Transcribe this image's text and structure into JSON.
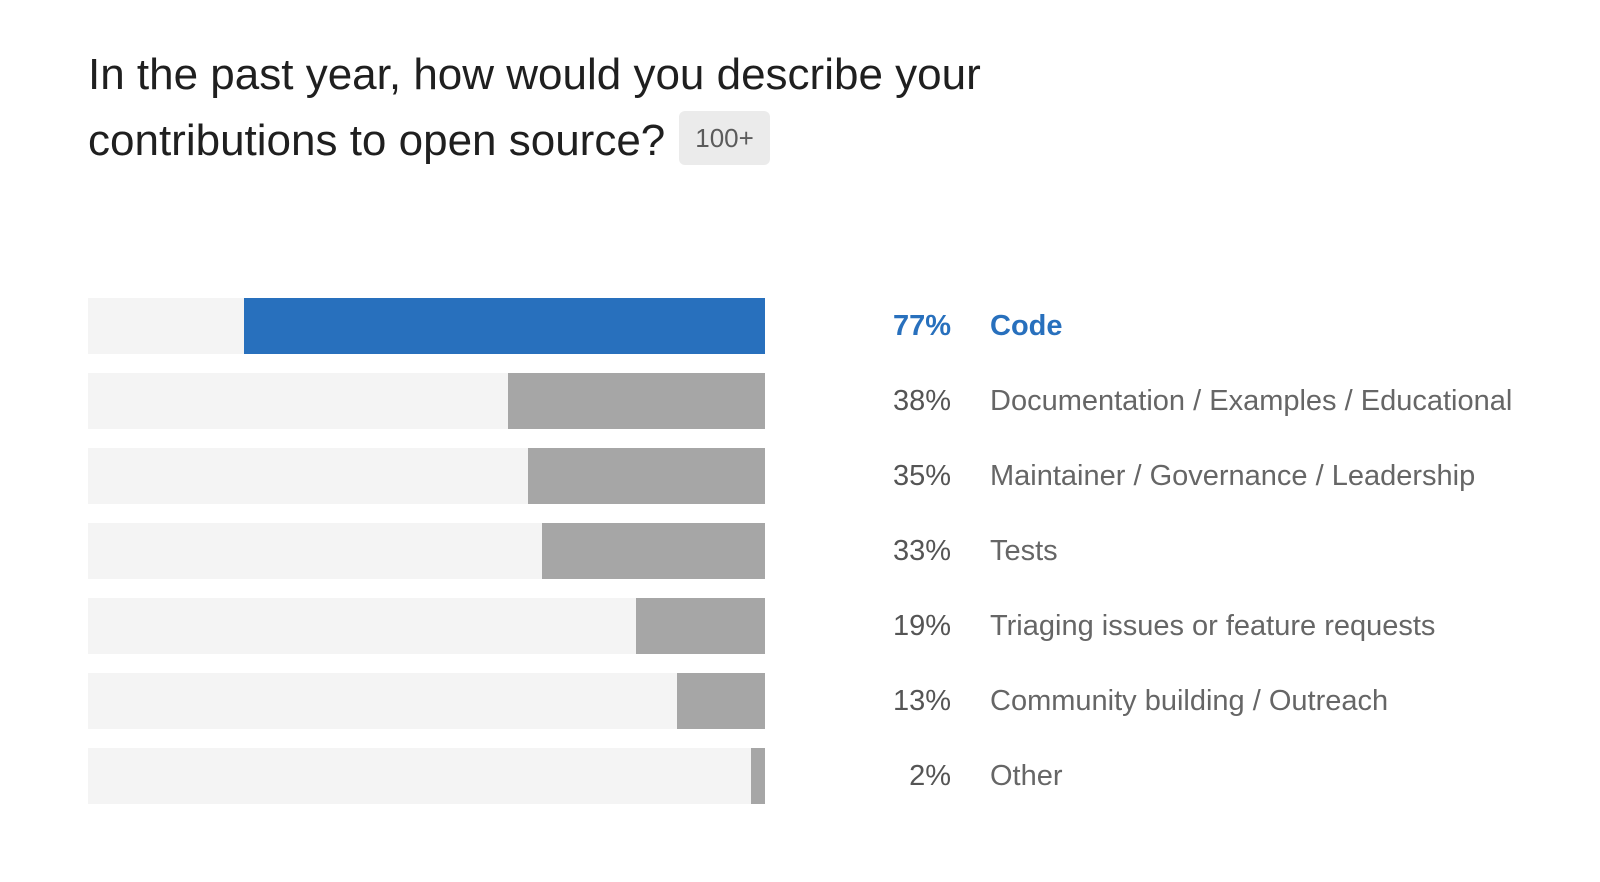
{
  "question": {
    "title": "In the past year, how would you describe your contributions to open source?",
    "badge": "100+"
  },
  "colors": {
    "highlight": "#2870bd",
    "bar": "#a6a6a6",
    "track": "#f4f4f4"
  },
  "chart_data": {
    "type": "bar",
    "orientation": "horizontal",
    "unit": "%",
    "categories": [
      "Code",
      "Documentation / Examples / Educational",
      "Maintainer / Governance / Leadership",
      "Tests",
      "Triaging issues or feature requests",
      "Community building / Outreach",
      "Other"
    ],
    "values": [
      77,
      38,
      35,
      33,
      19,
      13,
      2
    ],
    "value_labels": [
      "77%",
      "38%",
      "35%",
      "33%",
      "19%",
      "13%",
      "2%"
    ],
    "highlighted_index": 0,
    "xlim": [
      0,
      100
    ]
  }
}
